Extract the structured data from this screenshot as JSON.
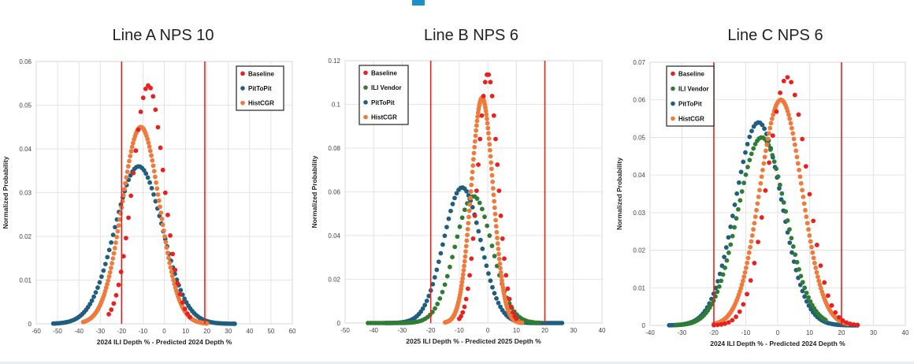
{
  "colors": {
    "Baseline": "#e8201e",
    "ILI Vendor": "#2e7d32",
    "PitToPit": "#1f5e7e",
    "HistCGR": "#ef7a3c",
    "limit_line": "#e8201e"
  },
  "chart_data": [
    {
      "type": "scatter",
      "title": "Line A NPS 10",
      "xlabel": "2024 ILI Depth % - Predicted 2024 Depth %",
      "ylabel": "Normalized Probability",
      "xlim": [
        -60,
        60
      ],
      "ylim": [
        0,
        0.06
      ],
      "xticks": [
        -60,
        -50,
        -40,
        -30,
        -20,
        -10,
        0,
        10,
        20,
        30,
        40,
        50,
        60
      ],
      "yticks": [
        0,
        0.01,
        0.02,
        0.03,
        0.04,
        0.05,
        0.06
      ],
      "ytick_labels": [
        "0",
        "0.01",
        "0.02",
        "0.03",
        "0.04",
        "0.05",
        "0.06"
      ],
      "vlines": [
        -20,
        19
      ],
      "grid": true,
      "legend_position": "top-right",
      "series": [
        {
          "name": "Baseline",
          "mean": -7.5,
          "std": 7.3,
          "peak": 0.0545,
          "xmin": -26,
          "xmax": 12,
          "n": 34
        },
        {
          "name": "PitToPit",
          "mean": -12,
          "std": 11.2,
          "peak": 0.036,
          "xmin": -52,
          "xmax": 33,
          "n": 95
        },
        {
          "name": "HistCGR",
          "mean": -11,
          "std": 8.8,
          "peak": 0.045,
          "xmin": -38,
          "xmax": 20,
          "n": 130
        }
      ]
    },
    {
      "type": "scatter",
      "title": "Line B NPS 6",
      "xlabel": "2025 ILI Depth % - Predicted 2025 Depth %",
      "ylabel": "Normalized Probability",
      "xlim": [
        -50,
        40
      ],
      "ylim": [
        0,
        0.12
      ],
      "xticks": [
        -50,
        -40,
        -30,
        -20,
        -10,
        0,
        10,
        20,
        30,
        40
      ],
      "yticks": [
        0,
        0.02,
        0.04,
        0.06,
        0.08,
        0.1,
        0.12
      ],
      "ytick_labels": [
        "0",
        "0.02",
        "0.04",
        "0.06",
        "0.08",
        "0.1",
        "0.12"
      ],
      "vlines": [
        -20,
        20
      ],
      "grid": true,
      "legend_position": "top-left",
      "series": [
        {
          "name": "Baseline",
          "mean": 0,
          "std": 3.5,
          "peak": 0.114,
          "xmin": -10,
          "xmax": 10,
          "n": 34
        },
        {
          "name": "ILI Vendor",
          "mean": -5,
          "std": 6.5,
          "peak": 0.058,
          "xmin": -42,
          "xmax": 18,
          "n": 70
        },
        {
          "name": "PitToPit",
          "mean": -9,
          "std": 6.5,
          "peak": 0.062,
          "xmin": -36,
          "xmax": 26,
          "n": 90
        },
        {
          "name": "HistCGR",
          "mean": -2,
          "std": 3.8,
          "peak": 0.103,
          "xmin": -15,
          "xmax": 12,
          "n": 150
        }
      ]
    },
    {
      "type": "scatter",
      "title": "Line C NPS 6",
      "xlabel": "2024 ILI Depth % - Predicted 2024 Depth %",
      "ylabel": "Normalized Probability",
      "xlim": [
        -40,
        40
      ],
      "ylim": [
        0,
        0.07
      ],
      "xticks": [
        -40,
        -30,
        -20,
        -10,
        0,
        10,
        20,
        30,
        40
      ],
      "yticks": [
        0,
        0.01,
        0.02,
        0.03,
        0.04,
        0.05,
        0.06,
        0.07
      ],
      "ytick_labels": [
        "0",
        "0.01",
        "0.02",
        "0.03",
        "0.04",
        "0.05",
        "0.06",
        "0.07"
      ],
      "vlines": [
        -20,
        20
      ],
      "grid": true,
      "legend_position": "top-left",
      "series": [
        {
          "name": "Baseline",
          "mean": 3,
          "std": 6.2,
          "peak": 0.066,
          "xmin": -20,
          "xmax": 25,
          "n": 40
        },
        {
          "name": "ILI Vendor",
          "mean": -5,
          "std": 7.5,
          "peak": 0.05,
          "xmin": -32,
          "xmax": 15,
          "n": 80
        },
        {
          "name": "PitToPit",
          "mean": -6,
          "std": 7.3,
          "peak": 0.054,
          "xmin": -34,
          "xmax": 25,
          "n": 90
        },
        {
          "name": "HistCGR",
          "mean": 1,
          "std": 6.6,
          "peak": 0.06,
          "xmin": -20,
          "xmax": 22,
          "n": 130
        }
      ]
    }
  ]
}
